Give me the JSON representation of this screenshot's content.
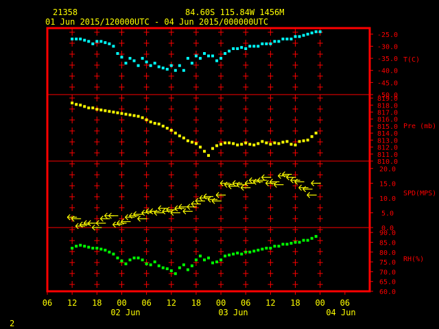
{
  "header": {
    "station_id": "21358",
    "location": "84.60S  115.84W  1456M",
    "time_range": "01 Jun 2015/120000UTC - 04 Jun 2015/000000UTC"
  },
  "footer": {
    "page_number": "2"
  },
  "x_axis": {
    "hour_labels": [
      "06",
      "12",
      "18",
      "00",
      "06",
      "12",
      "18",
      "00",
      "06",
      "12",
      "18",
      "00",
      "06"
    ],
    "date_labels": [
      "02 Jun",
      "03 Jun",
      "04 Jun"
    ]
  },
  "colors": {
    "frame": "#ff0000",
    "text": "#ffff00",
    "temperature": "#00ffff",
    "pressure": "#ffff00",
    "wind": "#ffff00",
    "rh": "#00ff00"
  },
  "chart_data": [
    {
      "type": "scatter",
      "panel": "temperature",
      "ylabel": "T(C)",
      "yticks": [
        "-25.0",
        "-30.0",
        "-35.0",
        "-40.0",
        "-45.0",
        "-50.0"
      ],
      "ylim": [
        -50,
        -22.5
      ],
      "x_unit": "hours since 01 Jun 2015 00UTC",
      "x": [
        12,
        13,
        14,
        15,
        16,
        17,
        18,
        19,
        20,
        21,
        22,
        23,
        24,
        25,
        26,
        27,
        28,
        29,
        30,
        31,
        32,
        33,
        34,
        35,
        36,
        37,
        38,
        39,
        40,
        41,
        42,
        43,
        44,
        45,
        46,
        47,
        48,
        49,
        50,
        51,
        52,
        53,
        54,
        55,
        56,
        57,
        58,
        59,
        60,
        61,
        62,
        63,
        64,
        65,
        66,
        67,
        68,
        69,
        70,
        71,
        72
      ],
      "y": [
        -27,
        -27,
        -27,
        -27.5,
        -28,
        -29,
        -28,
        -28,
        -28.5,
        -29,
        -30,
        -33,
        -34.5,
        -37,
        -35,
        -36,
        -38,
        -35,
        -36.5,
        -38,
        -37,
        -38.5,
        -39,
        -39.5,
        -38,
        -40,
        -38,
        -40,
        -35,
        -37,
        -34,
        -35,
        -33,
        -34,
        -34,
        -36,
        -35,
        -33,
        -32,
        -31,
        -31,
        -30.5,
        -31,
        -30,
        -30,
        -30,
        -29,
        -29,
        -29,
        -28,
        -28,
        -27,
        -27,
        -27,
        -26,
        -26,
        -25.5,
        -25,
        -24.5,
        -24,
        -24
      ]
    },
    {
      "type": "scatter",
      "panel": "pressure",
      "ylabel": "Pre (mb)",
      "yticks": [
        "819.0",
        "818.0",
        "817.0",
        "816.0",
        "815.0",
        "814.0",
        "813.0",
        "812.0",
        "811.0",
        "810.0"
      ],
      "ylim": [
        810,
        819.5
      ],
      "x_unit": "hours since 01 Jun 2015 00UTC",
      "x": [
        12,
        13,
        14,
        15,
        16,
        17,
        18,
        19,
        20,
        21,
        22,
        23,
        24,
        25,
        26,
        27,
        28,
        29,
        30,
        31,
        32,
        33,
        34,
        35,
        36,
        37,
        38,
        39,
        40,
        41,
        42,
        43,
        44,
        45,
        46,
        47,
        48,
        49,
        50,
        51,
        52,
        53,
        54,
        55,
        56,
        57,
        58,
        59,
        60,
        61,
        62,
        63,
        64,
        65,
        66,
        67,
        68,
        69,
        70,
        71
      ],
      "y": [
        818.3,
        818.1,
        818.0,
        817.8,
        817.6,
        817.6,
        817.4,
        817.3,
        817.2,
        817.1,
        817.0,
        816.9,
        816.8,
        816.7,
        816.6,
        816.5,
        816.4,
        816.2,
        815.9,
        815.6,
        815.4,
        815.3,
        815.0,
        814.7,
        814.4,
        814.0,
        813.6,
        813.3,
        812.9,
        812.7,
        812.5,
        812.0,
        811.4,
        810.8,
        811.8,
        812.2,
        812.4,
        812.6,
        812.6,
        812.5,
        812.3,
        812.4,
        812.6,
        812.4,
        812.3,
        812.5,
        812.8,
        812.6,
        812.4,
        812.6,
        812.5,
        812.7,
        812.8,
        812.4,
        812.3,
        812.8,
        812.9,
        813.0,
        813.5,
        814.0
      ]
    },
    {
      "type": "scatter",
      "panel": "wind",
      "ylabel": "SPD(MPS)",
      "yticks": [
        "20.0",
        "15.0",
        "10.0",
        "5.0",
        "0.0"
      ],
      "ylim": [
        0,
        22.5
      ],
      "x_unit": "hours since 01 Jun 2015 00UTC",
      "x": [
        12,
        13,
        14,
        15,
        16,
        17,
        18,
        19,
        20,
        21,
        22,
        23,
        24,
        25,
        26,
        27,
        28,
        29,
        30,
        31,
        32,
        33,
        34,
        35,
        36,
        37,
        38,
        39,
        40,
        41,
        42,
        43,
        44,
        45,
        46,
        47,
        48,
        49,
        50,
        51,
        52,
        53,
        54,
        55,
        56,
        57,
        58,
        59,
        60,
        61,
        62,
        63,
        64,
        65,
        66,
        67,
        68,
        69,
        70,
        71
      ],
      "y": [
        3.5,
        3.0,
        0.5,
        1.0,
        1.5,
        1.5,
        0,
        1.5,
        3.0,
        4.0,
        4.0,
        1.0,
        1.5,
        2.0,
        3.5,
        4.0,
        4.5,
        3.0,
        5.0,
        5.5,
        5.5,
        5.0,
        6.5,
        5.5,
        6.0,
        5.0,
        6.5,
        7.0,
        5.5,
        7.0,
        8.0,
        9.0,
        10.0,
        10.5,
        9.5,
        9.0,
        11.0,
        15.0,
        14.5,
        14.0,
        15.0,
        14.5,
        13.5,
        15.0,
        16.0,
        15.5,
        16.0,
        17.0,
        15.0,
        15.5,
        14.5,
        17.5,
        18.0,
        17.0,
        16.0,
        15.5,
        13.5,
        13.0,
        11.0,
        15.0
      ]
    },
    {
      "type": "scatter",
      "panel": "relative humidity",
      "ylabel": "RH(%)",
      "yticks": [
        "90.0",
        "85.0",
        "80.0",
        "75.0",
        "70.0",
        "65.0",
        "60.0"
      ],
      "ylim": [
        60,
        92.5
      ],
      "x_unit": "hours since 01 Jun 2015 00UTC",
      "x": [
        12,
        13,
        14,
        15,
        16,
        17,
        18,
        19,
        20,
        21,
        22,
        23,
        24,
        25,
        26,
        27,
        28,
        29,
        30,
        31,
        32,
        33,
        34,
        35,
        36,
        37,
        38,
        39,
        40,
        41,
        42,
        43,
        44,
        45,
        46,
        47,
        48,
        49,
        50,
        51,
        52,
        53,
        54,
        55,
        56,
        57,
        58,
        59,
        60,
        61,
        62,
        63,
        64,
        65,
        66,
        67,
        68,
        69,
        70,
        71
      ],
      "y": [
        82,
        83,
        83.5,
        83,
        82.5,
        82,
        82,
        81.5,
        81,
        80,
        79,
        77,
        75.5,
        74,
        76,
        77,
        77,
        76,
        74,
        73.5,
        75,
        73,
        72,
        71.5,
        70.5,
        69,
        72,
        73.5,
        71,
        73,
        76,
        78,
        76,
        77,
        74.5,
        75,
        76,
        78,
        78.5,
        79,
        79.5,
        79,
        80,
        80,
        80.5,
        81,
        81.5,
        82,
        82,
        83,
        83,
        84,
        84,
        84.5,
        85,
        85,
        86,
        86,
        87,
        88
      ]
    }
  ]
}
